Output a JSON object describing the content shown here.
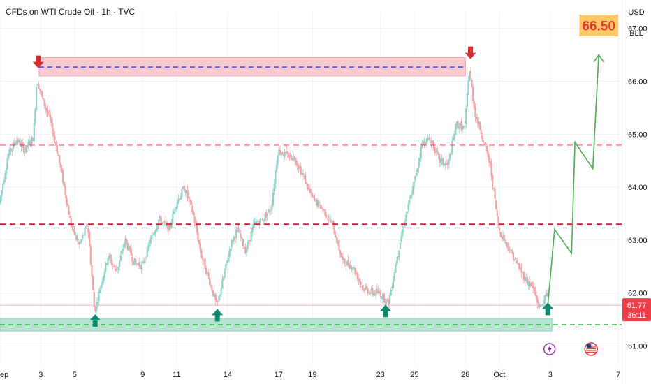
{
  "header": {
    "title": "CFDs on WTI Crude Oil · 1h · TVC",
    "currency": "USD",
    "unit": "BLL"
  },
  "colors": {
    "up": "#26a69a",
    "down": "#ef5350",
    "resistance_zone": "#f8c9cf",
    "support_zone": "#b7e2d0",
    "projection": "#4caf50",
    "marker_down": "#d32f2f",
    "marker_up": "#0b8a6f",
    "target_badge_bg": "#ffc867",
    "target_text": "#e53935",
    "price_badge": "#ef3d4a"
  },
  "chart_data": {
    "type": "candlestick",
    "x_ticks": [
      {
        "label": "ep",
        "day": 0.6
      },
      {
        "label": "3",
        "day": 3
      },
      {
        "label": "5",
        "day": 5
      },
      {
        "label": "9",
        "day": 9
      },
      {
        "label": "11",
        "day": 11
      },
      {
        "label": "14",
        "day": 14
      },
      {
        "label": "17",
        "day": 17
      },
      {
        "label": "19",
        "day": 19
      },
      {
        "label": "23",
        "day": 23
      },
      {
        "label": "25",
        "day": 25
      },
      {
        "label": "28",
        "day": 28
      },
      {
        "label": "Oct",
        "day": 30
      },
      {
        "label": "3",
        "day": 33
      },
      {
        "label": "7",
        "day": 37
      }
    ],
    "y_ticks": [
      "61.00",
      "62.00",
      "63.00",
      "64.00",
      "65.00",
      "66.00",
      "67.00"
    ],
    "ylim": [
      60.65,
      67.3
    ],
    "xlim": [
      0.6,
      37.2
    ],
    "price_path": [
      [
        0.6,
        63.7
      ],
      [
        1.1,
        64.6
      ],
      [
        1.6,
        64.9
      ],
      [
        2.1,
        64.7
      ],
      [
        2.6,
        64.95
      ],
      [
        2.8,
        66.05
      ],
      [
        3.1,
        65.7
      ],
      [
        3.5,
        65.35
      ],
      [
        3.9,
        64.85
      ],
      [
        4.3,
        64.2
      ],
      [
        4.8,
        63.3
      ],
      [
        5.3,
        62.9
      ],
      [
        5.8,
        63.3
      ],
      [
        6.2,
        61.65
      ],
      [
        6.6,
        62.2
      ],
      [
        7.0,
        62.7
      ],
      [
        7.5,
        62.4
      ],
      [
        8.0,
        63.0
      ],
      [
        8.5,
        62.6
      ],
      [
        9.0,
        62.5
      ],
      [
        9.5,
        63.0
      ],
      [
        10.0,
        63.4
      ],
      [
        10.6,
        63.2
      ],
      [
        11.0,
        63.7
      ],
      [
        11.5,
        64.0
      ],
      [
        12.0,
        63.5
      ],
      [
        12.5,
        62.7
      ],
      [
        13.0,
        62.2
      ],
      [
        13.4,
        61.75
      ],
      [
        13.8,
        62.3
      ],
      [
        14.2,
        62.9
      ],
      [
        14.6,
        63.2
      ],
      [
        15.1,
        62.8
      ],
      [
        15.6,
        63.3
      ],
      [
        16.1,
        63.4
      ],
      [
        16.6,
        63.6
      ],
      [
        17.0,
        64.7
      ],
      [
        17.5,
        64.6
      ],
      [
        18.0,
        64.55
      ],
      [
        18.5,
        64.2
      ],
      [
        19.0,
        63.8
      ],
      [
        19.6,
        63.6
      ],
      [
        20.2,
        63.3
      ],
      [
        20.8,
        62.6
      ],
      [
        21.4,
        62.5
      ],
      [
        22.0,
        62.1
      ],
      [
        22.6,
        62.0
      ],
      [
        23.0,
        62.0
      ],
      [
        23.5,
        61.8
      ],
      [
        23.9,
        62.5
      ],
      [
        24.4,
        63.3
      ],
      [
        25.0,
        64.05
      ],
      [
        25.5,
        64.85
      ],
      [
        26.0,
        64.9
      ],
      [
        26.5,
        64.5
      ],
      [
        27.0,
        64.4
      ],
      [
        27.5,
        65.2
      ],
      [
        28.0,
        65.1
      ],
      [
        28.25,
        66.25
      ],
      [
        28.6,
        65.4
      ],
      [
        29.0,
        65.0
      ],
      [
        29.5,
        64.4
      ],
      [
        30.0,
        63.2
      ],
      [
        30.5,
        62.9
      ],
      [
        31.0,
        62.6
      ],
      [
        31.5,
        62.3
      ],
      [
        32.0,
        62.1
      ],
      [
        32.4,
        61.7
      ],
      [
        32.8,
        61.95
      ]
    ],
    "levels": {
      "resistance_zone": [
        66.1,
        66.45
      ],
      "resistance_line": 66.27,
      "level_upper": 64.8,
      "level_lower": 63.3,
      "support_zone": [
        61.28,
        61.52
      ],
      "support_line": 61.4
    },
    "markers_down": [
      [
        2.85,
        66.25
      ],
      [
        28.3,
        66.42
      ]
    ],
    "markers_up": [
      [
        6.2,
        61.6
      ],
      [
        13.4,
        61.7
      ],
      [
        23.3,
        61.78
      ],
      [
        32.85,
        61.82
      ]
    ],
    "projection_path": [
      [
        32.85,
        61.77
      ],
      [
        33.25,
        63.2
      ],
      [
        34.25,
        62.75
      ],
      [
        34.45,
        64.85
      ],
      [
        35.5,
        64.35
      ],
      [
        35.85,
        66.5
      ]
    ],
    "target": {
      "label": "66.50",
      "value": 66.5
    },
    "current_price": {
      "label": "61.77",
      "countdown": "36:11",
      "value": 61.77
    }
  }
}
